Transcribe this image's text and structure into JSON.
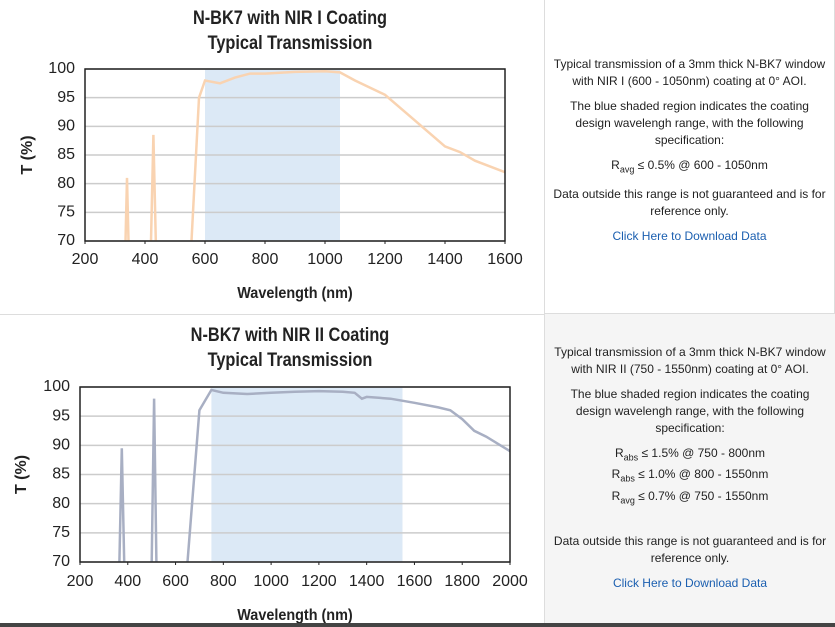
{
  "chart_data": [
    {
      "type": "line",
      "title": "N-BK7 with NIR I Coating",
      "subtitle": "Typical Transmission",
      "x_label": "Wavelength (nm)",
      "y_label": "T (%)",
      "color": "#f9d3b1",
      "shade_color": "#dce9f6",
      "shaded_range": [
        600,
        1050
      ],
      "x": [
        335,
        340,
        345,
        null,
        420,
        428,
        436,
        null,
        555,
        580,
        600,
        650,
        700,
        750,
        800,
        900,
        1000,
        1050,
        1100,
        1200,
        1300,
        1400,
        1450,
        1500,
        1600
      ],
      "values": [
        70,
        81,
        70,
        null,
        70,
        88.5,
        70,
        null,
        70,
        95,
        98,
        97.5,
        98.5,
        99.2,
        99.2,
        99.5,
        99.6,
        99.4,
        98,
        95.5,
        91,
        86.5,
        85.5,
        84,
        82
      ],
      "xlim": [
        200,
        1600
      ],
      "xticks": [
        200,
        400,
        600,
        800,
        1000,
        1200,
        1400,
        1600
      ],
      "ylim": [
        70,
        100
      ],
      "yticks": [
        70,
        75,
        80,
        85,
        90,
        95,
        100
      ],
      "grid": true
    },
    {
      "type": "line",
      "title": "N-BK7 with NIR II Coating",
      "subtitle": "Typical Transmission",
      "x_label": "Wavelength (nm)",
      "y_label": "T (%)",
      "color": "#a8afc3",
      "shade_color": "#dce9f6",
      "shaded_range": [
        750,
        1550
      ],
      "x": [
        365,
        375,
        385,
        null,
        500,
        510,
        520,
        null,
        650,
        700,
        750,
        800,
        900,
        1000,
        1100,
        1200,
        1300,
        1350,
        1380,
        1400,
        1500,
        1600,
        1700,
        1750,
        1800,
        1850,
        1900,
        2000
      ],
      "values": [
        70,
        89.5,
        70,
        null,
        70,
        98,
        70,
        null,
        70,
        96,
        99.5,
        99,
        98.8,
        99,
        99.2,
        99.3,
        99.2,
        99,
        98,
        98.3,
        98,
        97.3,
        96.5,
        96,
        94.5,
        92.5,
        91.5,
        89
      ],
      "xlim": [
        200,
        2000
      ],
      "xticks": [
        200,
        400,
        600,
        800,
        1000,
        1200,
        1400,
        1600,
        1800,
        2000
      ],
      "ylim": [
        70,
        100
      ],
      "yticks": [
        70,
        75,
        80,
        85,
        90,
        95,
        100
      ],
      "grid": true
    }
  ],
  "panels": [
    {
      "intro": "Typical transmission of a 3mm thick N-BK7 window with NIR I (600 - 1050nm) coating at 0° AOI.",
      "shade_note": "The blue shaded region indicates the coating design wavelengh range, with the following specification:",
      "specs": [
        {
          "symbol": "R",
          "sub": "avg",
          "text": "≤ 0.5% @ 600 - 1050nm"
        }
      ],
      "disclaimer": "Data outside this range is not guaranteed and is for reference only.",
      "link": "Click Here to Download Data"
    },
    {
      "intro": "Typical transmission of a 3mm thick N-BK7 window with NIR II (750 - 1550nm) coating at 0° AOI.",
      "shade_note": "The blue shaded region indicates the coating design wavelengh range, with the following specification:",
      "specs": [
        {
          "symbol": "R",
          "sub": "abs",
          "text": "≤ 1.5% @ 750 - 800nm"
        },
        {
          "symbol": "R",
          "sub": "abs",
          "text": "≤ 1.0% @ 800 - 1550nm"
        },
        {
          "symbol": "R",
          "sub": "avg",
          "text": "≤ 0.7% @ 750 - 1550nm"
        }
      ],
      "disclaimer": "Data outside this range is not guaranteed and is for reference only.",
      "link": "Click Here to Download Data"
    }
  ]
}
